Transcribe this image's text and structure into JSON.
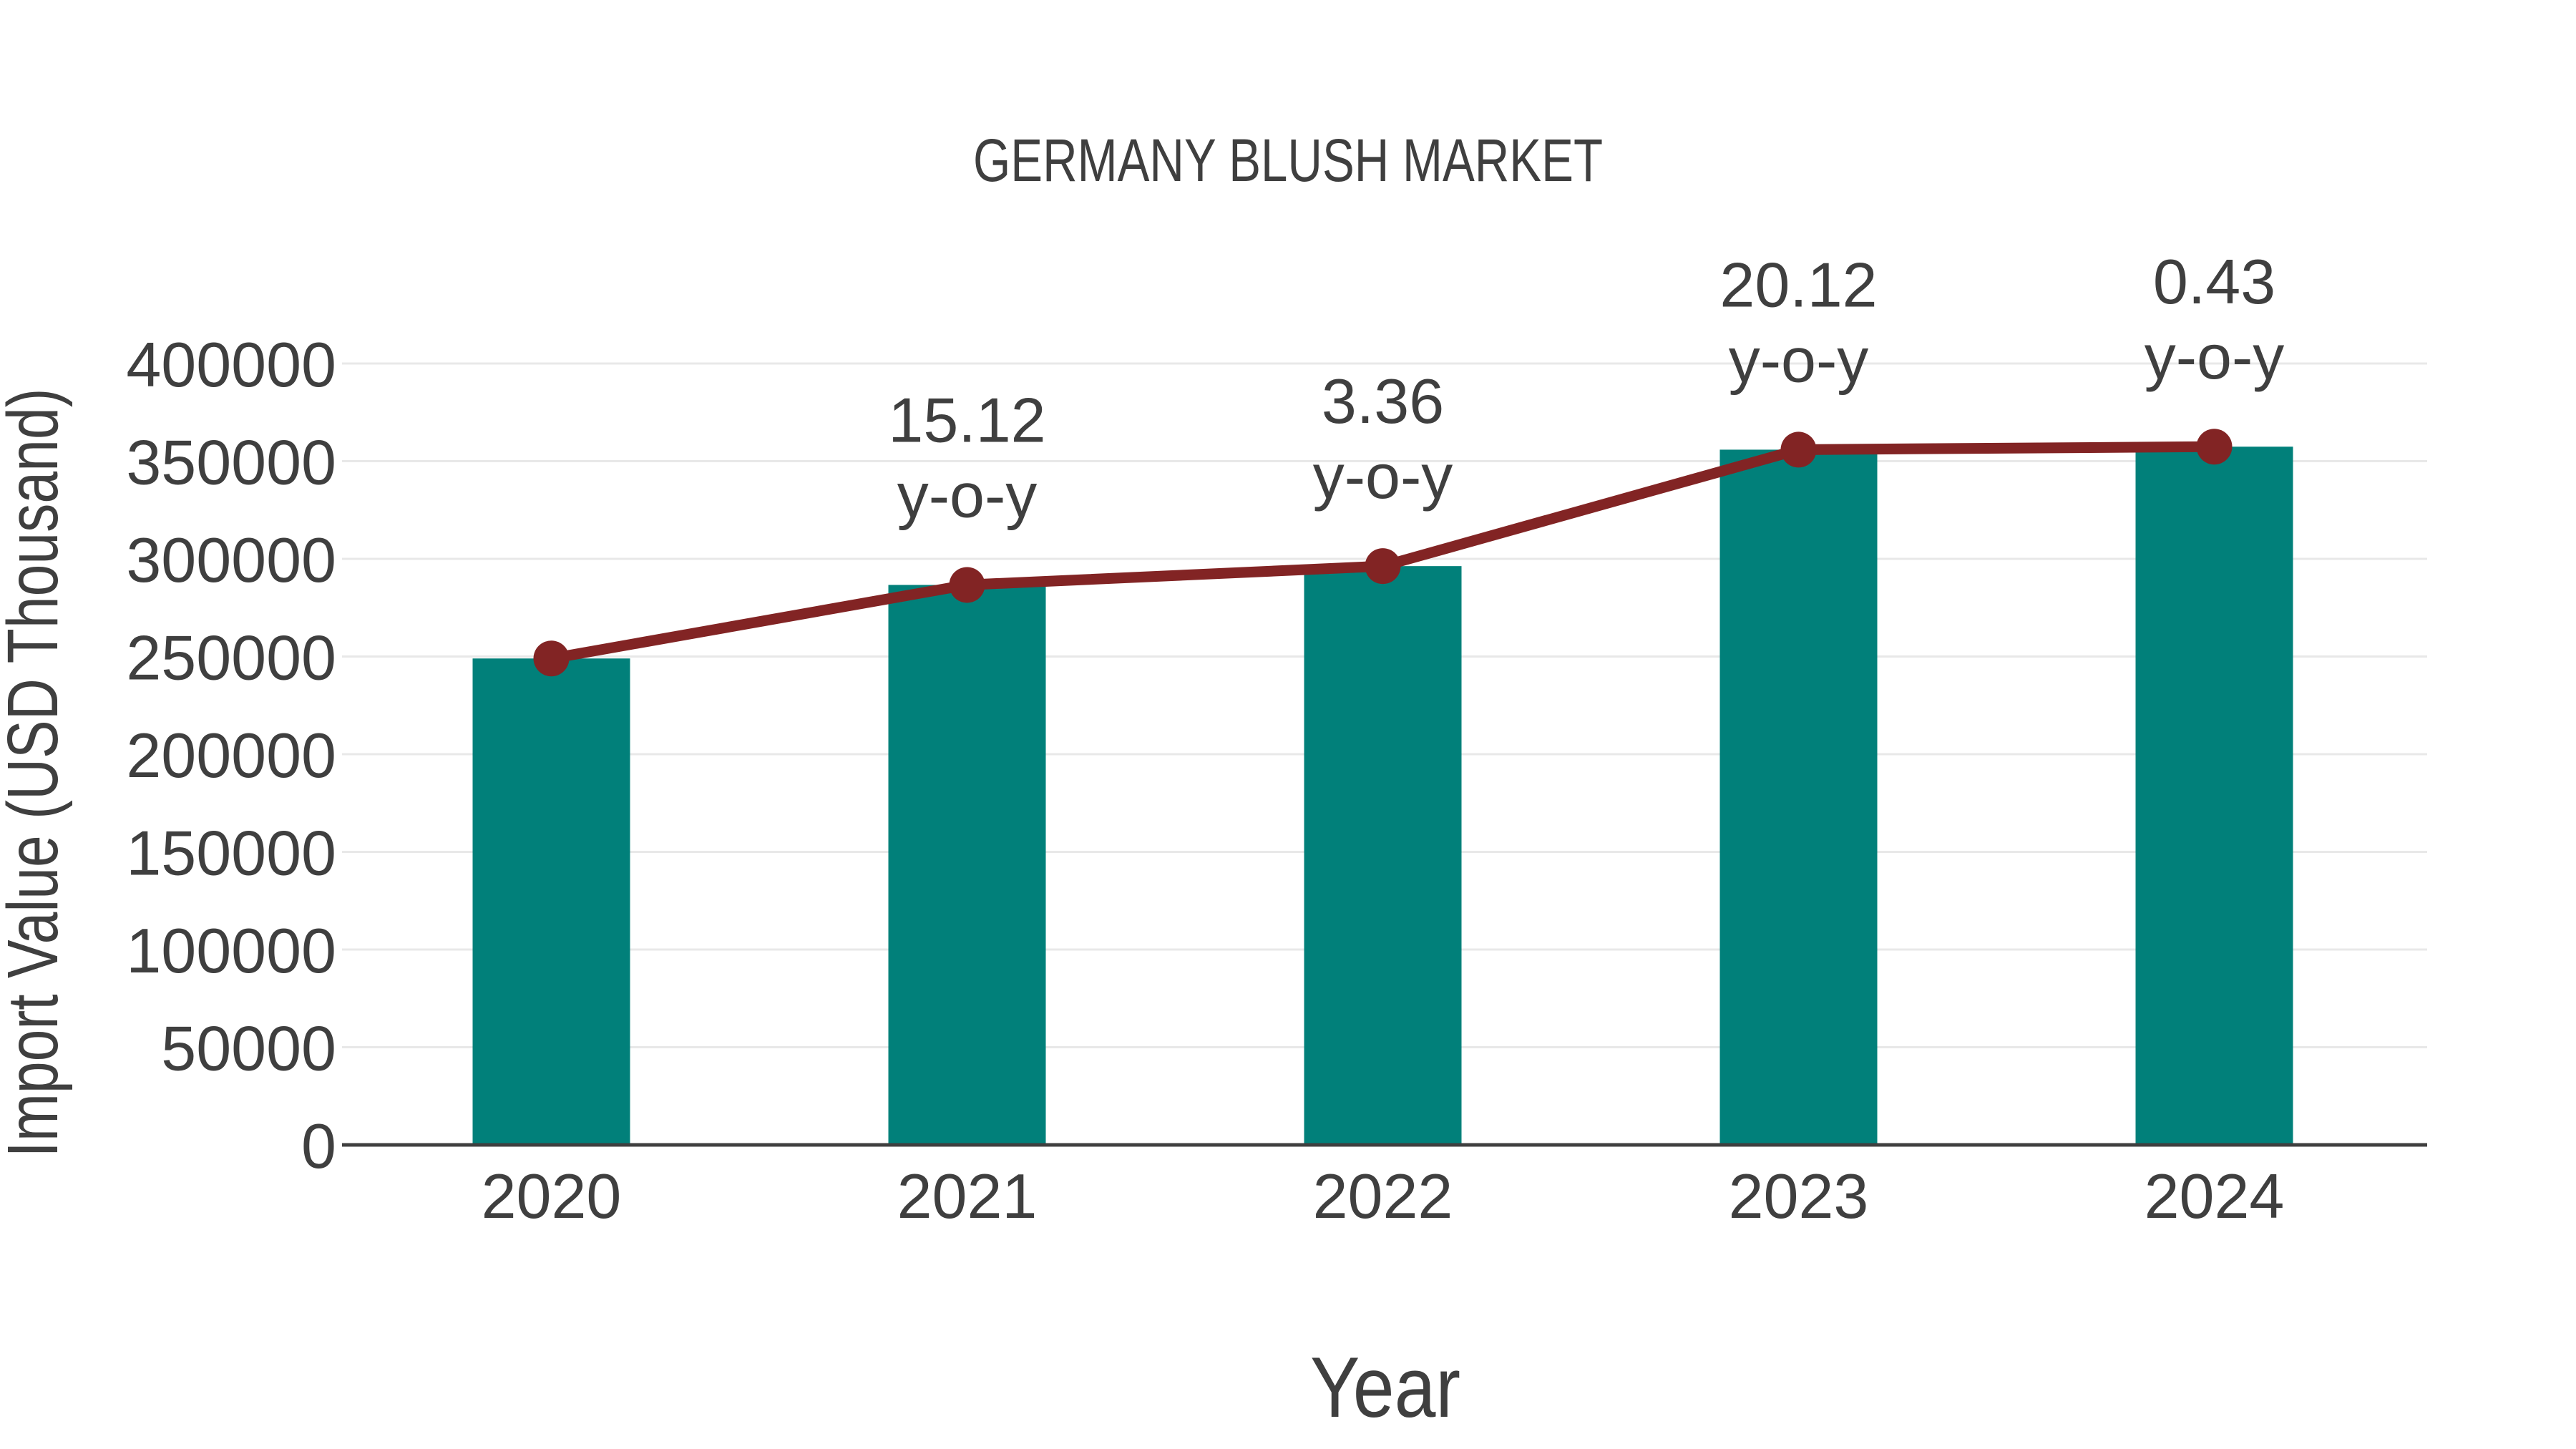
{
  "window": {
    "background": "#ffffff"
  },
  "chart_data": {
    "type": "combo-bar-line",
    "title": "GERMANY BLUSH MARKET",
    "xlabel": "Year",
    "ylabel": "Import Value (USD Thousand)",
    "categories": [
      "2020",
      "2021",
      "2022",
      "2023",
      "2024"
    ],
    "series": [
      {
        "name": "Import Value bars",
        "type": "bar",
        "color": "#01807A",
        "values": [
          249000,
          286650,
          296280,
          355890,
          357420
        ]
      },
      {
        "name": "Import Value trend",
        "type": "line",
        "color": "#822424",
        "values": [
          249000,
          286650,
          296280,
          355890,
          357420
        ]
      }
    ],
    "annotations": [
      {
        "category": "2021",
        "value": "15.12",
        "suffix": "y-o-y"
      },
      {
        "category": "2022",
        "value": "3.36",
        "suffix": "y-o-y"
      },
      {
        "category": "2023",
        "value": "20.12",
        "suffix": "y-o-y"
      },
      {
        "category": "2024",
        "value": "0.43",
        "suffix": "y-o-y"
      }
    ],
    "ylim": [
      0,
      400000
    ],
    "ytick_step": 50000,
    "yticks": [
      "0",
      "50000",
      "100000",
      "150000",
      "200000",
      "250000",
      "300000",
      "350000",
      "400000"
    ],
    "grid": true,
    "legend": false,
    "colors": {
      "grid": "#e8e8e8",
      "axis_line": "#3f3f3f",
      "text": "#3f3f3f",
      "background": "#ffffff"
    }
  }
}
